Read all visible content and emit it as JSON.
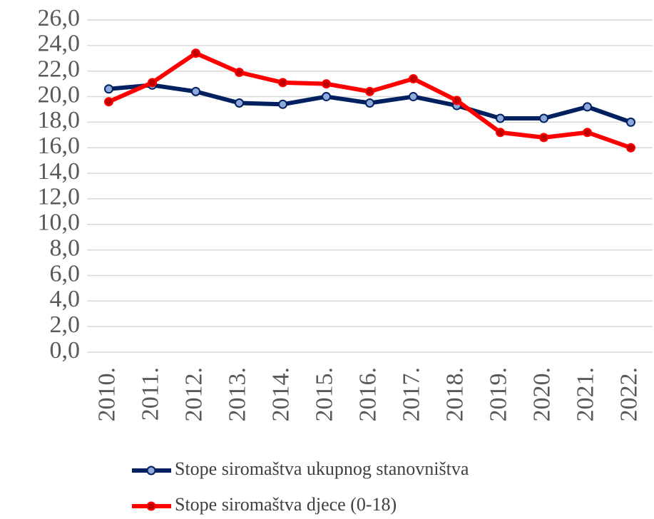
{
  "chart_data": {
    "type": "line",
    "categories": [
      "2010.",
      "2011.",
      "2012.",
      "2013.",
      "2014.",
      "2015.",
      "2016.",
      "2017.",
      "2018.",
      "2019.",
      "2020.",
      "2021.",
      "2022."
    ],
    "series": [
      {
        "name": "Stope siromaštva ukupnog stanovništva",
        "color": "#002060",
        "marker_color": "#8ea9db",
        "values": [
          20.6,
          20.9,
          20.4,
          19.5,
          19.4,
          20.0,
          19.5,
          20.0,
          19.3,
          18.3,
          18.3,
          19.2,
          18.0
        ]
      },
      {
        "name": "Stope siromaštva djece (0-18)",
        "color": "#ff0000",
        "marker_color": "#c00000",
        "values": [
          19.6,
          21.1,
          23.4,
          21.9,
          21.1,
          21.0,
          20.4,
          21.4,
          19.7,
          17.2,
          16.8,
          17.2,
          16.0
        ]
      }
    ],
    "ylim": [
      0,
      26
    ],
    "yticks": [
      {
        "value": 0,
        "label": "0,0"
      },
      {
        "value": 2,
        "label": "2,0"
      },
      {
        "value": 4,
        "label": "4,0"
      },
      {
        "value": 6,
        "label": "6,0"
      },
      {
        "value": 8,
        "label": "8,0"
      },
      {
        "value": 10,
        "label": "10,0"
      },
      {
        "value": 12,
        "label": "12,0"
      },
      {
        "value": 14,
        "label": "14,0"
      },
      {
        "value": 16,
        "label": "16,0"
      },
      {
        "value": 18,
        "label": "18,0"
      },
      {
        "value": 20,
        "label": "20,0"
      },
      {
        "value": 22,
        "label": "22,0"
      },
      {
        "value": 24,
        "label": "24,0"
      },
      {
        "value": 26,
        "label": "26,0"
      }
    ],
    "grid": true,
    "legend": "bottom"
  }
}
